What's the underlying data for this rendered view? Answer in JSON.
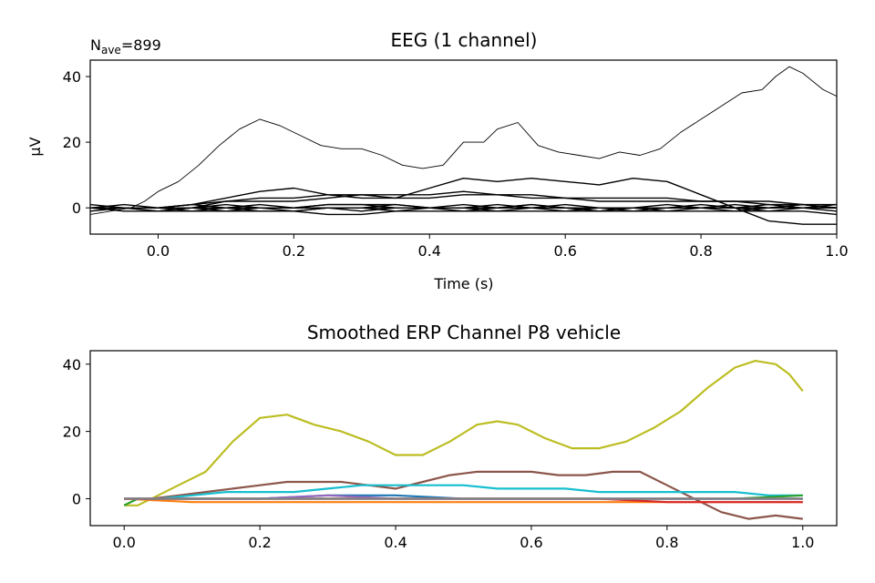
{
  "chart_data": [
    {
      "type": "line",
      "title": "EEG (1 channel)",
      "xlabel": "Time (s)",
      "ylabel": "µV",
      "nave_label": "N",
      "nave_sub": "ave",
      "nave_value": "=899",
      "xlim": [
        -0.1,
        1.0
      ],
      "ylim": [
        -8,
        45
      ],
      "xticks": [
        0.0,
        0.2,
        0.4,
        0.6,
        0.8,
        1.0
      ],
      "xtick_labels": [
        "0.0",
        "0.2",
        "0.4",
        "0.6",
        "0.8",
        "1.0"
      ],
      "yticks": [
        0,
        20,
        40
      ],
      "ytick_labels": [
        "0",
        "20",
        "40"
      ],
      "grid": false,
      "color": "#000000",
      "series": [
        {
          "x": [
            -0.1,
            -0.07,
            -0.04,
            -0.02,
            0.0,
            0.03,
            0.06,
            0.09,
            0.12,
            0.15,
            0.18,
            0.21,
            0.24,
            0.27,
            0.3,
            0.33,
            0.36,
            0.39,
            0.42,
            0.45,
            0.48,
            0.5,
            0.53,
            0.56,
            0.59,
            0.62,
            0.65,
            0.68,
            0.71,
            0.74,
            0.77,
            0.8,
            0.83,
            0.86,
            0.89,
            0.91,
            0.93,
            0.95,
            0.98,
            1.0
          ],
          "values": [
            -2,
            -1,
            0,
            2,
            5,
            8,
            13,
            19,
            24,
            27,
            25,
            22,
            19,
            18,
            18,
            16,
            13,
            12,
            13,
            20,
            20,
            24,
            26,
            19,
            17,
            16,
            15,
            17,
            16,
            18,
            23,
            27,
            31,
            35,
            36,
            40,
            43,
            41,
            36,
            34
          ]
        },
        {
          "x": [
            -0.1,
            -0.05,
            0.0,
            0.05,
            0.1,
            0.15,
            0.2,
            0.25,
            0.3,
            0.35,
            0.4,
            0.45,
            0.5,
            0.55,
            0.6,
            0.65,
            0.7,
            0.75,
            0.8,
            0.85,
            0.9,
            0.95,
            1.0
          ],
          "values": [
            0,
            0,
            0,
            1,
            3,
            5,
            6,
            4,
            3,
            3,
            6,
            9,
            8,
            9,
            8,
            7,
            9,
            8,
            4,
            0,
            -4,
            -5,
            -5
          ]
        },
        {
          "x": [
            -0.1,
            -0.05,
            0.0,
            0.05,
            0.1,
            0.15,
            0.2,
            0.25,
            0.3,
            0.35,
            0.4,
            0.45,
            0.5,
            0.55,
            0.6,
            0.65,
            0.7,
            0.75,
            0.8,
            0.85,
            0.9,
            0.95,
            1.0
          ],
          "values": [
            0,
            0,
            -1,
            0,
            2,
            2,
            2,
            3,
            4,
            3,
            3,
            4,
            4,
            3,
            3,
            2,
            2,
            2,
            2,
            2,
            1,
            1,
            1
          ]
        },
        {
          "x": [
            -0.1,
            -0.05,
            0.0,
            0.05,
            0.1,
            0.15,
            0.2,
            0.25,
            0.3,
            0.35,
            0.4,
            0.45,
            0.5,
            0.55,
            0.6,
            0.65,
            0.7,
            0.75,
            0.8,
            0.85,
            0.9,
            0.95,
            1.0
          ],
          "values": [
            0,
            0,
            0,
            1,
            2,
            3,
            3,
            4,
            4,
            4,
            4,
            5,
            4,
            4,
            3,
            3,
            3,
            3,
            2,
            2,
            2,
            1,
            0
          ]
        },
        {
          "x": [
            -0.1,
            -0.05,
            0.0,
            0.05,
            0.1,
            0.15,
            0.2,
            0.25,
            0.3,
            0.35,
            0.4,
            0.45,
            0.5,
            0.55,
            0.6,
            0.65,
            0.7,
            0.75,
            0.8,
            0.85,
            0.9,
            0.95,
            1.0
          ],
          "values": [
            0,
            -1,
            -1,
            -1,
            -1,
            -1,
            -1,
            -2,
            -2,
            -1,
            -1,
            -1,
            -1,
            -1,
            -1,
            -1,
            -1,
            -1,
            -1,
            -1,
            -1,
            -1,
            -2
          ]
        },
        {
          "x": [
            -0.1,
            -0.05,
            0.0,
            0.05,
            0.1,
            0.15,
            0.2,
            0.25,
            0.3,
            0.35,
            0.4,
            0.45,
            0.5,
            0.55,
            0.6,
            0.65,
            0.7,
            0.75,
            0.8,
            0.85,
            0.9,
            0.95,
            1.0
          ],
          "values": [
            1,
            0,
            0,
            -1,
            0,
            1,
            0,
            1,
            1,
            0,
            0,
            1,
            0,
            1,
            0,
            -1,
            0,
            1,
            0,
            1,
            0,
            1,
            0
          ]
        },
        {
          "x": [
            -0.1,
            -0.05,
            0.0,
            0.05,
            0.1,
            0.15,
            0.2,
            0.25,
            0.3,
            0.35,
            0.4,
            0.45,
            0.5,
            0.55,
            0.6,
            0.65,
            0.7,
            0.75,
            0.8,
            0.85,
            0.9,
            0.95,
            1.0
          ],
          "values": [
            -1,
            0,
            0,
            0,
            0,
            -1,
            -1,
            0,
            0,
            -1,
            0,
            0,
            -1,
            0,
            0,
            -1,
            0,
            -1,
            0,
            0,
            -1,
            0,
            -1
          ]
        },
        {
          "x": [
            -0.1,
            -0.05,
            0.0,
            0.05,
            0.1,
            0.15,
            0.2,
            0.25,
            0.3,
            0.35,
            0.4,
            0.45,
            0.5,
            0.55,
            0.6,
            0.65,
            0.7,
            0.75,
            0.8,
            0.85,
            0.9,
            0.95,
            1.0
          ],
          "values": [
            0,
            1,
            0,
            0,
            1,
            0,
            0,
            1,
            1,
            1,
            0,
            0,
            1,
            0,
            1,
            0,
            0,
            0,
            1,
            0,
            0,
            1,
            0
          ]
        },
        {
          "x": [
            -0.1,
            -0.05,
            0.0,
            0.05,
            0.1,
            0.15,
            0.2,
            0.25,
            0.3,
            0.35,
            0.4,
            0.45,
            0.5,
            0.55,
            0.6,
            0.65,
            0.7,
            0.75,
            0.8,
            0.85,
            0.9,
            0.95,
            1.0
          ],
          "values": [
            0,
            0,
            -1,
            0,
            0,
            0,
            -1,
            0,
            0,
            0,
            0,
            -1,
            0,
            0,
            0,
            0,
            -1,
            0,
            0,
            0,
            0,
            0,
            1
          ]
        },
        {
          "x": [
            -0.1,
            -0.05,
            0.0,
            0.05,
            0.1,
            0.15,
            0.2,
            0.25,
            0.3,
            0.35,
            0.4,
            0.45,
            0.5,
            0.55,
            0.6,
            0.65,
            0.7,
            0.75,
            0.8,
            0.85,
            0.9,
            0.95,
            1.0
          ],
          "values": [
            0,
            0,
            0,
            0,
            -1,
            0,
            0,
            0,
            -1,
            0,
            0,
            0,
            0,
            0,
            -1,
            0,
            0,
            0,
            0,
            -1,
            0,
            0,
            0
          ]
        },
        {
          "x": [
            -0.1,
            -0.05,
            0.0,
            0.05,
            0.1,
            0.15,
            0.2,
            0.25,
            0.3,
            0.35,
            0.4,
            0.45,
            0.5,
            0.55,
            0.6,
            0.65,
            0.7,
            0.75,
            0.8,
            0.85,
            0.9,
            0.95,
            1.0
          ],
          "values": [
            0,
            0,
            0,
            1,
            0,
            0,
            0,
            0,
            0,
            1,
            0,
            0,
            0,
            1,
            0,
            0,
            0,
            0,
            0,
            0,
            1,
            0,
            0
          ]
        }
      ]
    },
    {
      "type": "line",
      "title": "Smoothed ERP Channel P8 vehicle",
      "xlabel": "",
      "ylabel": "",
      "xlim": [
        -0.05,
        1.05
      ],
      "ylim": [
        -8,
        44
      ],
      "xticks": [
        0.0,
        0.2,
        0.4,
        0.6,
        0.8,
        1.0
      ],
      "xtick_labels": [
        "0.0",
        "0.2",
        "0.4",
        "0.6",
        "0.8",
        "1.0"
      ],
      "yticks": [
        0,
        20,
        40
      ],
      "ytick_labels": [
        "0",
        "20",
        "40"
      ],
      "grid": false,
      "series": [
        {
          "color": "#bcbd22",
          "x": [
            0.0,
            0.02,
            0.05,
            0.08,
            0.12,
            0.16,
            0.2,
            0.24,
            0.28,
            0.32,
            0.36,
            0.4,
            0.44,
            0.48,
            0.52,
            0.55,
            0.58,
            0.62,
            0.66,
            0.7,
            0.74,
            0.78,
            0.82,
            0.86,
            0.9,
            0.93,
            0.96,
            0.98,
            1.0
          ],
          "values": [
            -2,
            -2,
            1,
            4,
            8,
            17,
            24,
            25,
            22,
            20,
            17,
            13,
            13,
            17,
            22,
            23,
            22,
            18,
            15,
            15,
            17,
            21,
            26,
            33,
            39,
            41,
            40,
            37,
            32
          ]
        },
        {
          "color": "#8c564b",
          "x": [
            0.0,
            0.04,
            0.08,
            0.12,
            0.16,
            0.2,
            0.24,
            0.28,
            0.32,
            0.36,
            0.4,
            0.44,
            0.48,
            0.52,
            0.56,
            0.6,
            0.64,
            0.68,
            0.72,
            0.76,
            0.8,
            0.84,
            0.88,
            0.92,
            0.96,
            1.0
          ],
          "values": [
            0,
            0,
            1,
            2,
            3,
            4,
            5,
            5,
            5,
            4,
            3,
            5,
            7,
            8,
            8,
            8,
            7,
            7,
            8,
            8,
            4,
            0,
            -4,
            -6,
            -5,
            -6
          ]
        },
        {
          "color": "#17becf",
          "x": [
            0.0,
            0.05,
            0.1,
            0.15,
            0.2,
            0.25,
            0.3,
            0.35,
            0.4,
            0.45,
            0.5,
            0.55,
            0.6,
            0.65,
            0.7,
            0.75,
            0.8,
            0.85,
            0.9,
            0.95,
            1.0
          ],
          "values": [
            0,
            0,
            1,
            2,
            2,
            2,
            3,
            4,
            4,
            4,
            4,
            3,
            3,
            3,
            2,
            2,
            2,
            2,
            2,
            1,
            1
          ]
        },
        {
          "color": "#1f77b4",
          "x": [
            0.0,
            0.1,
            0.2,
            0.3,
            0.4,
            0.5,
            0.6,
            0.7,
            0.8,
            0.9,
            1.0
          ],
          "values": [
            0,
            0,
            0,
            1,
            1,
            0,
            0,
            0,
            0,
            0,
            0
          ]
        },
        {
          "color": "#ff7f0e",
          "x": [
            0.0,
            0.1,
            0.2,
            0.3,
            0.4,
            0.5,
            0.6,
            0.7,
            0.8,
            0.9,
            1.0
          ],
          "values": [
            0,
            -1,
            -1,
            -1,
            -1,
            -1,
            -1,
            -1,
            -1,
            -1,
            -1
          ]
        },
        {
          "color": "#2ca02c",
          "x": [
            0.0,
            0.02,
            0.05,
            0.1,
            0.2,
            0.3,
            0.4,
            0.5,
            0.6,
            0.7,
            0.8,
            0.9,
            1.0
          ],
          "values": [
            -2,
            0,
            0,
            0,
            0,
            0,
            0,
            0,
            0,
            0,
            0,
            0,
            1
          ]
        },
        {
          "color": "#d62728",
          "x": [
            0.0,
            0.1,
            0.2,
            0.3,
            0.4,
            0.5,
            0.6,
            0.7,
            0.8,
            0.9,
            1.0
          ],
          "values": [
            0,
            0,
            0,
            0,
            0,
            0,
            0,
            0,
            -1,
            -1,
            -1
          ]
        },
        {
          "color": "#9467bd",
          "x": [
            0.0,
            0.1,
            0.2,
            0.3,
            0.4,
            0.5,
            0.6,
            0.7,
            0.8,
            0.9,
            1.0
          ],
          "values": [
            0,
            0,
            0,
            1,
            0,
            0,
            0,
            0,
            0,
            0,
            0
          ]
        },
        {
          "color": "#e377c2",
          "x": [
            0.0,
            0.1,
            0.2,
            0.3,
            0.4,
            0.5,
            0.6,
            0.7,
            0.8,
            0.9,
            1.0
          ],
          "values": [
            0,
            0,
            0,
            0,
            0,
            0,
            0,
            0,
            0,
            0,
            0
          ]
        },
        {
          "color": "#7f7f7f",
          "x": [
            0.0,
            0.1,
            0.2,
            0.3,
            0.4,
            0.5,
            0.6,
            0.7,
            0.8,
            0.9,
            1.0
          ],
          "values": [
            0,
            0,
            0,
            0,
            0,
            0,
            0,
            0,
            0,
            0,
            0
          ]
        }
      ]
    }
  ]
}
